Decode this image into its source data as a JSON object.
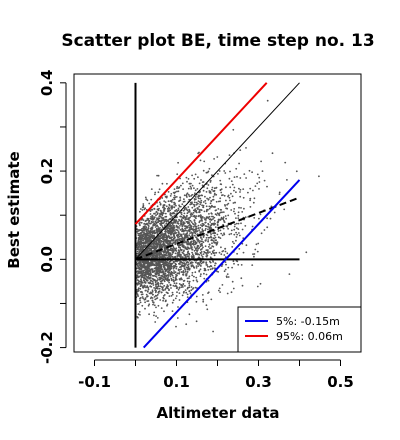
{
  "chart_data": {
    "type": "scatter",
    "title": "Scatter plot BE, time step no. 13",
    "xlabel": "Altimeter data",
    "ylabel": "Best estimate",
    "xlim": [
      -0.15,
      0.55
    ],
    "ylim": [
      -0.21,
      0.42
    ],
    "xticks": [
      -0.1,
      0.1,
      0.3,
      0.5
    ],
    "xticks_minor": [
      0.0,
      0.2,
      0.4
    ],
    "yticks": [
      -0.2,
      0.0,
      0.2,
      0.4
    ],
    "yticks_minor": [
      -0.1,
      0.1,
      0.3
    ],
    "grid": false,
    "point_color": "#555555",
    "points_description": "dense point cloud, altimeter 0.0 to 0.47, best estimate -0.21 to 0.42",
    "lines": [
      {
        "name": "x = 0",
        "color": "#000000",
        "style": "solid",
        "x": [
          0.0,
          0.0
        ],
        "y": [
          -0.2,
          0.4
        ]
      },
      {
        "name": "y = 0",
        "color": "#000000",
        "style": "solid",
        "x": [
          0.0,
          0.4
        ],
        "y": [
          0.0,
          0.0
        ]
      },
      {
        "name": "identity",
        "color": "#000000",
        "style": "solid-thin",
        "x": [
          0.0,
          0.4
        ],
        "y": [
          0.0,
          0.4
        ]
      },
      {
        "name": "regression",
        "color": "#000000",
        "style": "dashed",
        "x": [
          0.0,
          0.4
        ],
        "y": [
          0.0,
          0.14
        ]
      },
      {
        "name": "5%",
        "color": "#0000ee",
        "style": "solid",
        "x": [
          0.02,
          0.4
        ],
        "y": [
          -0.2,
          0.18
        ]
      },
      {
        "name": "95%",
        "color": "#ee0000",
        "style": "solid",
        "x": [
          0.0,
          0.32
        ],
        "y": [
          0.08,
          0.4
        ]
      }
    ],
    "legend": {
      "position": "bottom-right",
      "entries": [
        {
          "label": "5%: -0.15m",
          "color": "#0000ee"
        },
        {
          "label": "95%:  0.06m",
          "color": "#ee0000"
        }
      ]
    }
  }
}
